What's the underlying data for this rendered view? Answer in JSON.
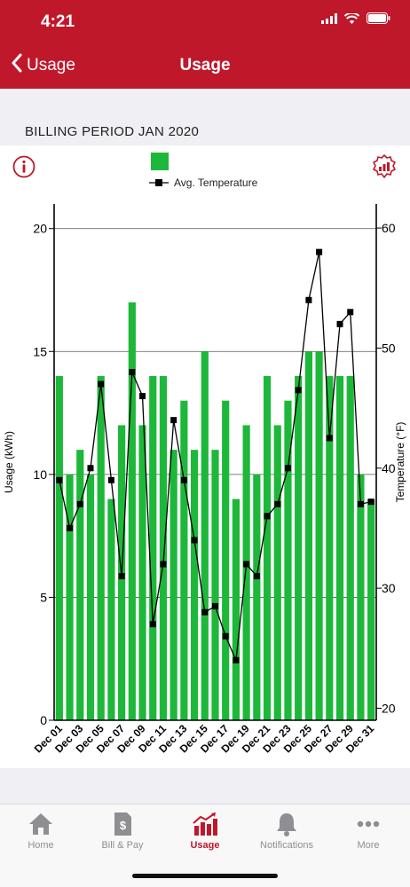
{
  "status_bar": {
    "time": "4:21"
  },
  "nav": {
    "back_label": "Usage",
    "title": "Usage"
  },
  "billing_period": "BILLING PERIOD JAN 2020",
  "legend": {
    "series_label": "",
    "temp_label": "Avg. Temperature",
    "usage_color": "#1db83a",
    "temp_color": "#000000"
  },
  "icons": {
    "info": "info-icon",
    "settings": "gear-chart-icon"
  },
  "chart_data": {
    "type": "bar",
    "categories": [
      "Dec 01",
      "Dec 02",
      "Dec 03",
      "Dec 04",
      "Dec 05",
      "Dec 06",
      "Dec 07",
      "Dec 08",
      "Dec 09",
      "Dec 10",
      "Dec 11",
      "Dec 12",
      "Dec 13",
      "Dec 14",
      "Dec 15",
      "Dec 16",
      "Dec 17",
      "Dec 18",
      "Dec 19",
      "Dec 20",
      "Dec 21",
      "Dec 22",
      "Dec 23",
      "Dec 24",
      "Dec 25",
      "Dec 26",
      "Dec 27",
      "Dec 28",
      "Dec 29",
      "Dec 30",
      "Dec 31"
    ],
    "x_tick_labels": [
      "Dec 01",
      "Dec 03",
      "Dec 05",
      "Dec 07",
      "Dec 09",
      "Dec 11",
      "Dec 13",
      "Dec 15",
      "Dec 17",
      "Dec 19",
      "Dec 21",
      "Dec 23",
      "Dec 25",
      "Dec 27",
      "Dec 29",
      "Dec 31"
    ],
    "series": [
      {
        "axis": "left",
        "type": "bar",
        "values": [
          14,
          10,
          11,
          10,
          14,
          9,
          12,
          17,
          12,
          14,
          14,
          11,
          13,
          11,
          15,
          11,
          13,
          9,
          12,
          10,
          14,
          12,
          13,
          14,
          15,
          15,
          14,
          14,
          14,
          10,
          9
        ]
      },
      {
        "name": "Avg. Temperature",
        "axis": "right",
        "type": "line",
        "values": [
          39,
          35,
          37,
          40,
          47,
          39,
          31,
          48,
          46,
          27,
          32,
          44,
          39,
          34,
          28,
          28.5,
          26,
          24,
          32,
          31,
          36,
          37,
          40,
          46.5,
          54,
          58,
          42.5,
          52,
          53,
          37,
          37.2
        ]
      }
    ],
    "ylabel": "Usage (kWh)",
    "ylim": [
      0,
      21
    ],
    "y_ticks": [
      0,
      5,
      10,
      15,
      20
    ],
    "y2label": "Temperature (°F)",
    "y2lim": [
      19,
      62
    ],
    "y2_ticks": [
      20,
      30,
      40,
      50,
      60
    ],
    "grid": "horizontal"
  },
  "tabs": [
    {
      "label": "Home",
      "icon": "home-icon",
      "active": false
    },
    {
      "label": "Bill & Pay",
      "icon": "bill-icon",
      "active": false
    },
    {
      "label": "Usage",
      "icon": "usage-chart-icon",
      "active": true
    },
    {
      "label": "Notifications",
      "icon": "bell-icon",
      "active": false
    },
    {
      "label": "More",
      "icon": "more-icon",
      "active": false
    }
  ]
}
